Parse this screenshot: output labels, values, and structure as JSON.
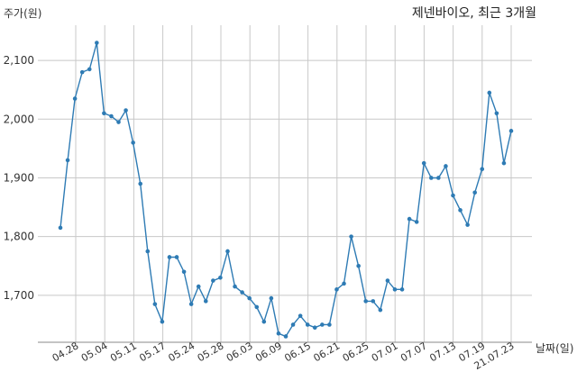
{
  "chart_data": {
    "type": "line",
    "title": "제넨바이오, 최근 3개월",
    "ylabel": "주가(원)",
    "xlabel": "날짜(일)",
    "ylim": [
      1620,
      2160
    ],
    "y_ticks": [
      1700,
      1800,
      1900,
      2000,
      2100
    ],
    "y_tick_labels": [
      "1,700",
      "1,800",
      "1,900",
      "2,000",
      "2,100"
    ],
    "x_tick_labels": [
      "04.28",
      "05.04",
      "05.11",
      "05.17",
      "05.24",
      "05.28",
      "06.03",
      "06.09",
      "06.15",
      "06.21",
      "06.25",
      "07.01",
      "07.07",
      "07.13",
      "07.19",
      "21.07.23"
    ],
    "grid": true,
    "line_color": "#2e7bb4",
    "series": [
      {
        "values": [
          1815,
          1930,
          2035,
          2080,
          2085,
          2130,
          2010,
          2005,
          1995,
          2015,
          1960,
          1890,
          1775,
          1685,
          1655,
          1765,
          1765,
          1740,
          1685,
          1715,
          1690,
          1725,
          1730,
          1775,
          1715,
          1705,
          1695,
          1680,
          1655,
          1695,
          1635,
          1630,
          1650,
          1665,
          1650,
          1645,
          1650,
          1650,
          1710,
          1720,
          1800,
          1750,
          1690,
          1690,
          1675,
          1725,
          1710,
          1710,
          1830,
          1825,
          1925,
          1900,
          1900,
          1920,
          1870,
          1845,
          1820,
          1875,
          1915,
          2045,
          2010,
          1925,
          1980
        ]
      }
    ]
  }
}
